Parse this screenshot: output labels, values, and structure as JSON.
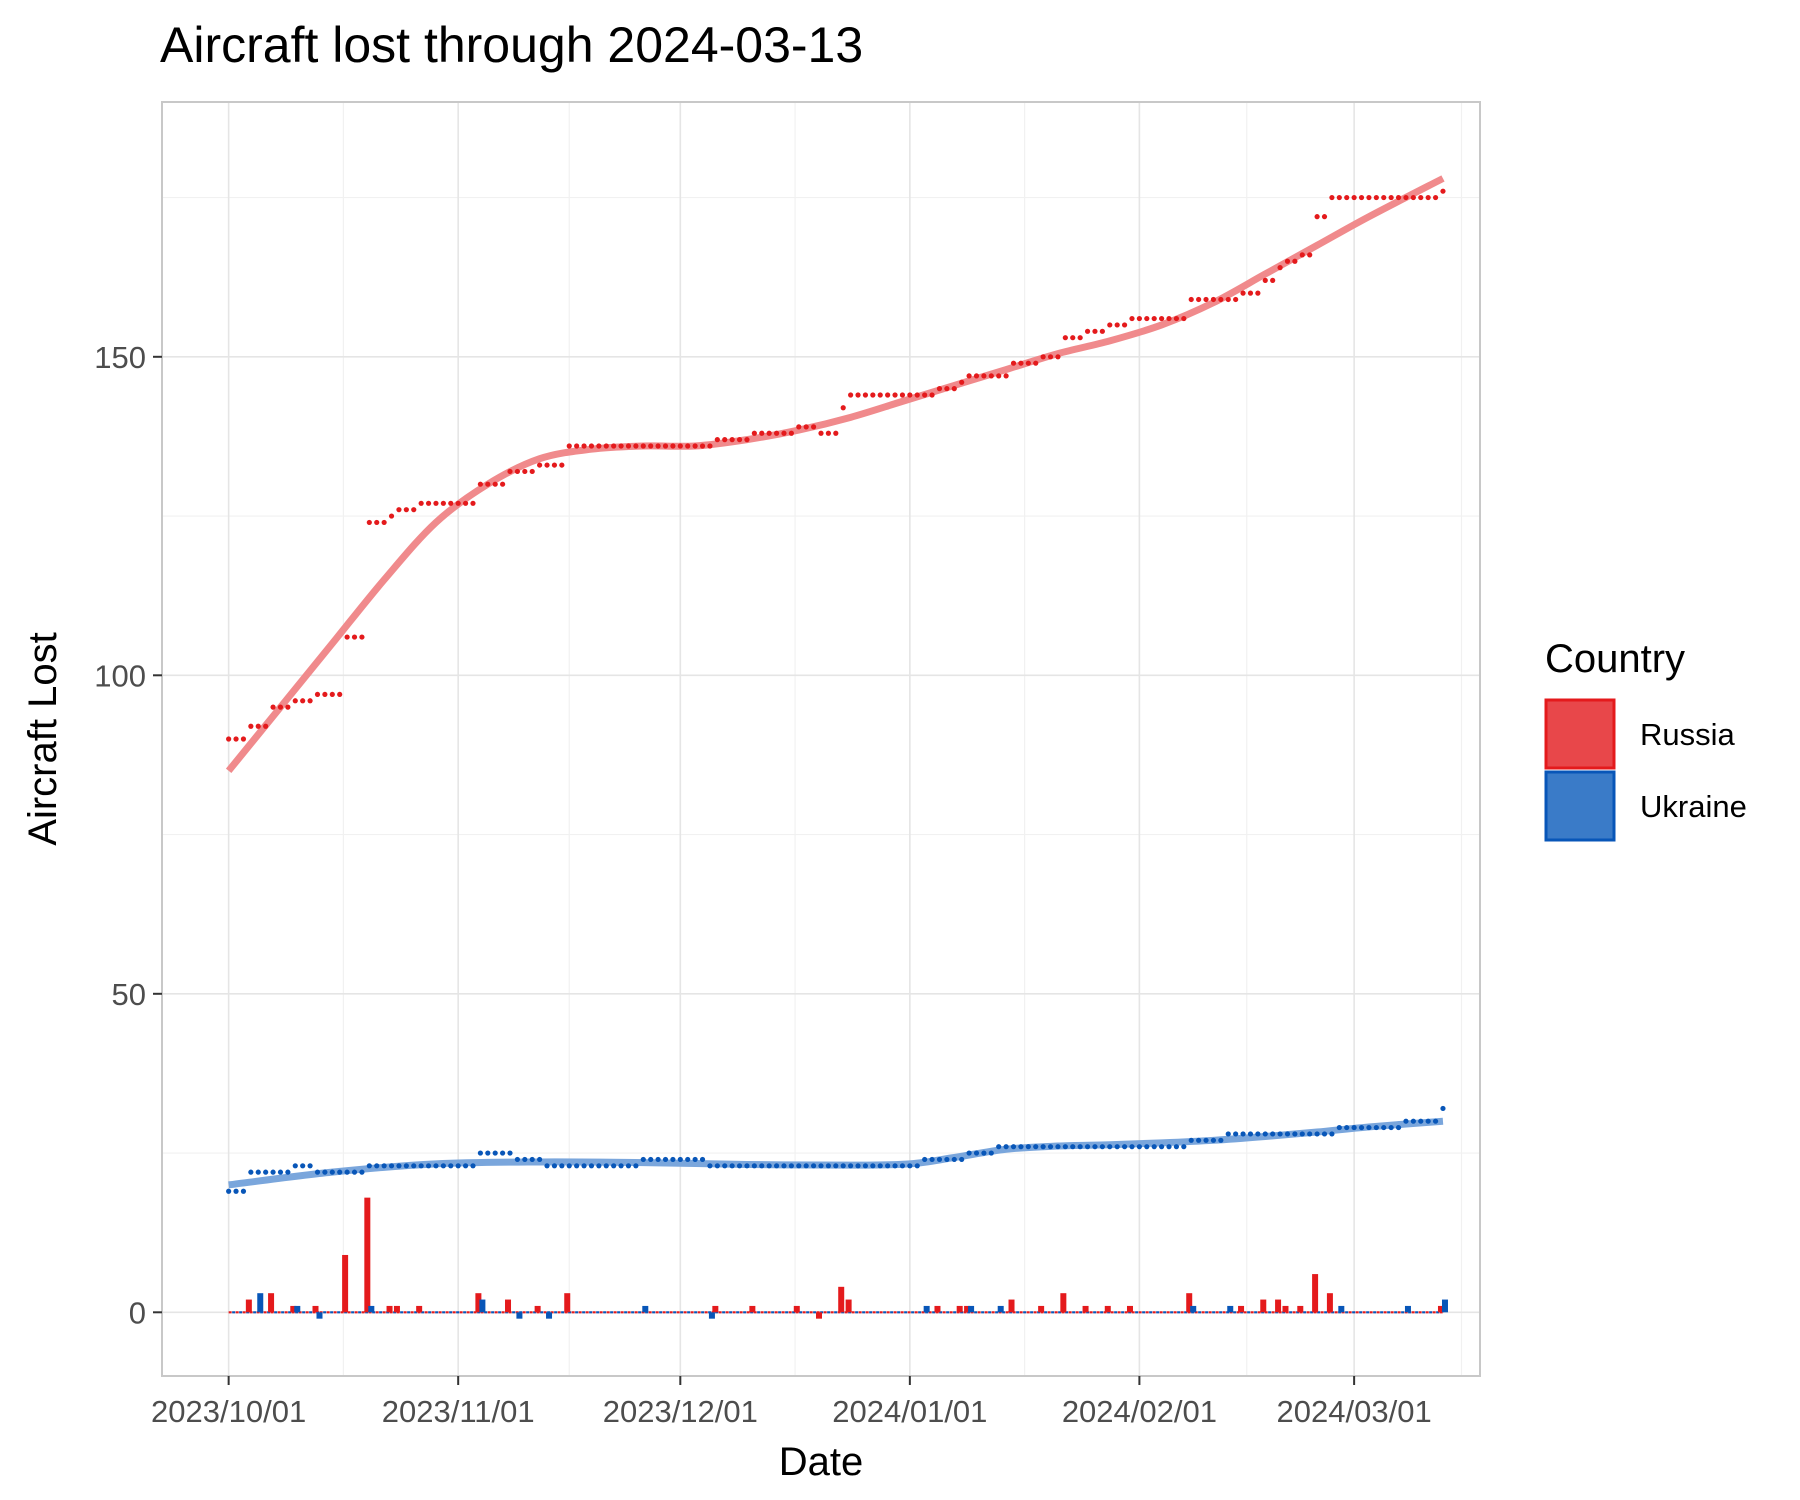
{
  "chart_data": {
    "type": "line",
    "title": "Aircraft lost through 2024-03-13",
    "xlabel": "Date",
    "ylabel": "Aircraft Lost",
    "x_range": [
      "2023-09-22",
      "2024-03-18"
    ],
    "ylim": [
      -10,
      190
    ],
    "x_ticks": [
      {
        "date": "2023-10-01",
        "label": "2023/10/01"
      },
      {
        "date": "2023-11-01",
        "label": "2023/11/01"
      },
      {
        "date": "2023-12-01",
        "label": "2023/12/01"
      },
      {
        "date": "2024-01-01",
        "label": "2024/01/01"
      },
      {
        "date": "2024-02-01",
        "label": "2024/02/01"
      },
      {
        "date": "2024-03-01",
        "label": "2024/03/01"
      }
    ],
    "y_ticks": [
      0,
      50,
      100,
      150
    ],
    "grid": true,
    "legend": {
      "title": "Country",
      "position": "right"
    },
    "series": [
      {
        "name": "Russia",
        "color": "#e41a1c",
        "fill": "#e8474a",
        "smooth_color": "#f08a8c",
        "cumulative": [
          [
            "2023-10-01",
            90
          ],
          [
            "2023-10-04",
            92
          ],
          [
            "2023-10-07",
            95
          ],
          [
            "2023-10-10",
            96
          ],
          [
            "2023-10-13",
            97
          ],
          [
            "2023-10-17",
            106
          ],
          [
            "2023-10-20",
            124
          ],
          [
            "2023-10-23",
            125
          ],
          [
            "2023-10-24",
            126
          ],
          [
            "2023-10-27",
            127
          ],
          [
            "2023-11-04",
            130
          ],
          [
            "2023-11-08",
            132
          ],
          [
            "2023-11-12",
            133
          ],
          [
            "2023-11-16",
            136
          ],
          [
            "2023-12-06",
            137
          ],
          [
            "2023-12-11",
            138
          ],
          [
            "2023-12-17",
            139
          ],
          [
            "2023-12-20",
            138
          ],
          [
            "2023-12-23",
            142
          ],
          [
            "2023-12-24",
            144
          ],
          [
            "2024-01-05",
            145
          ],
          [
            "2024-01-08",
            146
          ],
          [
            "2024-01-09",
            147
          ],
          [
            "2024-01-15",
            149
          ],
          [
            "2024-01-19",
            150
          ],
          [
            "2024-01-22",
            153
          ],
          [
            "2024-01-25",
            154
          ],
          [
            "2024-01-28",
            155
          ],
          [
            "2024-01-31",
            156
          ],
          [
            "2024-02-08",
            159
          ],
          [
            "2024-02-15",
            160
          ],
          [
            "2024-02-18",
            162
          ],
          [
            "2024-02-20",
            164
          ],
          [
            "2024-02-21",
            165
          ],
          [
            "2024-02-23",
            166
          ],
          [
            "2024-02-25",
            172
          ],
          [
            "2024-02-27",
            175
          ],
          [
            "2024-03-13",
            176
          ]
        ],
        "daily": [
          [
            "2023-10-04",
            2
          ],
          [
            "2023-10-07",
            3
          ],
          [
            "2023-10-10",
            1
          ],
          [
            "2023-10-13",
            1
          ],
          [
            "2023-10-17",
            9
          ],
          [
            "2023-10-20",
            18
          ],
          [
            "2023-10-23",
            1
          ],
          [
            "2023-10-24",
            1
          ],
          [
            "2023-10-27",
            1
          ],
          [
            "2023-11-04",
            3
          ],
          [
            "2023-11-08",
            2
          ],
          [
            "2023-11-12",
            1
          ],
          [
            "2023-11-16",
            3
          ],
          [
            "2023-12-06",
            1
          ],
          [
            "2023-12-11",
            1
          ],
          [
            "2023-12-17",
            1
          ],
          [
            "2023-12-20",
            -1
          ],
          [
            "2023-12-23",
            4
          ],
          [
            "2023-12-24",
            2
          ],
          [
            "2024-01-05",
            1
          ],
          [
            "2024-01-08",
            1
          ],
          [
            "2024-01-09",
            1
          ],
          [
            "2024-01-15",
            2
          ],
          [
            "2024-01-19",
            1
          ],
          [
            "2024-01-22",
            3
          ],
          [
            "2024-01-25",
            1
          ],
          [
            "2024-01-28",
            1
          ],
          [
            "2024-01-31",
            1
          ],
          [
            "2024-02-08",
            3
          ],
          [
            "2024-02-15",
            1
          ],
          [
            "2024-02-18",
            2
          ],
          [
            "2024-02-20",
            2
          ],
          [
            "2024-02-21",
            1
          ],
          [
            "2024-02-23",
            1
          ],
          [
            "2024-02-25",
            6
          ],
          [
            "2024-02-27",
            3
          ],
          [
            "2024-03-13",
            1
          ]
        ],
        "smooth": [
          [
            "2023-10-01",
            85
          ],
          [
            "2023-10-08",
            95
          ],
          [
            "2023-10-15",
            105
          ],
          [
            "2023-10-22",
            115
          ],
          [
            "2023-10-29",
            124
          ],
          [
            "2023-11-05",
            130
          ],
          [
            "2023-11-12",
            134
          ],
          [
            "2023-11-19",
            135.5
          ],
          [
            "2023-11-26",
            136
          ],
          [
            "2023-12-03",
            136
          ],
          [
            "2023-12-10",
            137
          ],
          [
            "2023-12-17",
            138.5
          ],
          [
            "2023-12-24",
            140.5
          ],
          [
            "2023-12-31",
            143
          ],
          [
            "2024-01-07",
            145.5
          ],
          [
            "2024-01-14",
            148
          ],
          [
            "2024-01-21",
            150.5
          ],
          [
            "2024-01-28",
            152.5
          ],
          [
            "2024-02-04",
            155
          ],
          [
            "2024-02-11",
            158.5
          ],
          [
            "2024-02-18",
            163
          ],
          [
            "2024-02-25",
            167.5
          ],
          [
            "2024-03-03",
            172
          ],
          [
            "2024-03-13",
            178
          ]
        ]
      },
      {
        "name": "Ukraine",
        "color": "#0856b8",
        "fill": "#3a7bc8",
        "smooth_color": "#7aa6dc",
        "cumulative": [
          [
            "2023-10-01",
            19
          ],
          [
            "2023-10-04",
            22
          ],
          [
            "2023-10-10",
            23
          ],
          [
            "2023-10-13",
            22
          ],
          [
            "2023-10-20",
            23
          ],
          [
            "2023-11-04",
            25
          ],
          [
            "2023-11-09",
            24
          ],
          [
            "2023-11-13",
            23
          ],
          [
            "2023-11-26",
            24
          ],
          [
            "2023-12-05",
            23
          ],
          [
            "2024-01-03",
            24
          ],
          [
            "2024-01-09",
            25
          ],
          [
            "2024-01-13",
            26
          ],
          [
            "2024-02-08",
            27
          ],
          [
            "2024-02-13",
            28
          ],
          [
            "2024-02-28",
            29
          ],
          [
            "2024-03-08",
            30
          ],
          [
            "2024-03-13",
            32
          ]
        ],
        "daily": [
          [
            "2023-10-05",
            3
          ],
          [
            "2023-10-10",
            1
          ],
          [
            "2023-10-13",
            -1
          ],
          [
            "2023-10-20",
            1
          ],
          [
            "2023-11-04",
            2
          ],
          [
            "2023-11-09",
            -1
          ],
          [
            "2023-11-13",
            -1
          ],
          [
            "2023-11-26",
            1
          ],
          [
            "2023-12-05",
            -1
          ],
          [
            "2024-01-03",
            1
          ],
          [
            "2024-01-09",
            1
          ],
          [
            "2024-01-13",
            1
          ],
          [
            "2024-02-08",
            1
          ],
          [
            "2024-02-13",
            1
          ],
          [
            "2024-02-28",
            1
          ],
          [
            "2024-03-08",
            1
          ],
          [
            "2024-03-13",
            2
          ]
        ],
        "smooth": [
          [
            "2023-10-01",
            20
          ],
          [
            "2023-10-15",
            22
          ],
          [
            "2023-10-29",
            23.3
          ],
          [
            "2023-11-12",
            23.6
          ],
          [
            "2023-11-26",
            23.5
          ],
          [
            "2023-12-10",
            23.2
          ],
          [
            "2023-12-24",
            23.1
          ],
          [
            "2024-01-01",
            23.3
          ],
          [
            "2024-01-07",
            24.3
          ],
          [
            "2024-01-14",
            25.6
          ],
          [
            "2024-01-21",
            26.1
          ],
          [
            "2024-01-28",
            26.3
          ],
          [
            "2024-02-04",
            26.6
          ],
          [
            "2024-02-11",
            27
          ],
          [
            "2024-02-18",
            27.6
          ],
          [
            "2024-02-25",
            28.3
          ],
          [
            "2024-03-03",
            29.1
          ],
          [
            "2024-03-13",
            30
          ]
        ]
      }
    ]
  }
}
